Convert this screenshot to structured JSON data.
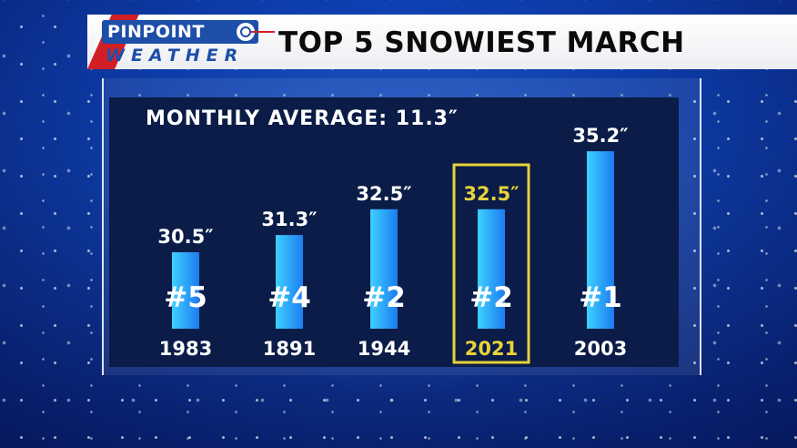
{
  "header": {
    "logo_top": "PINPOINT",
    "logo_bottom": "WEATHER",
    "title": "TOP 5 SNOWIEST MARCH"
  },
  "subtitle": "MONTHLY AVERAGE: 11.3″",
  "colors": {
    "highlight": "#e8d23a",
    "bar_light": "#3ed0ff",
    "bar_dark": "#1d7cf0",
    "panel": "#0a1c47"
  },
  "chart_data": {
    "type": "bar",
    "categories": [
      "1983",
      "1891",
      "1944",
      "2021",
      "2003"
    ],
    "values": [
      30.5,
      31.3,
      32.5,
      32.5,
      35.2
    ],
    "value_labels": [
      "30.5″",
      "31.3″",
      "32.5″",
      "32.5″",
      "35.2″"
    ],
    "rank_labels": [
      "#5",
      "#4",
      "#2",
      "#2",
      "#1"
    ],
    "highlighted": [
      false,
      false,
      false,
      true,
      false
    ],
    "unit": "inches",
    "grid": false,
    "legend": "none"
  }
}
